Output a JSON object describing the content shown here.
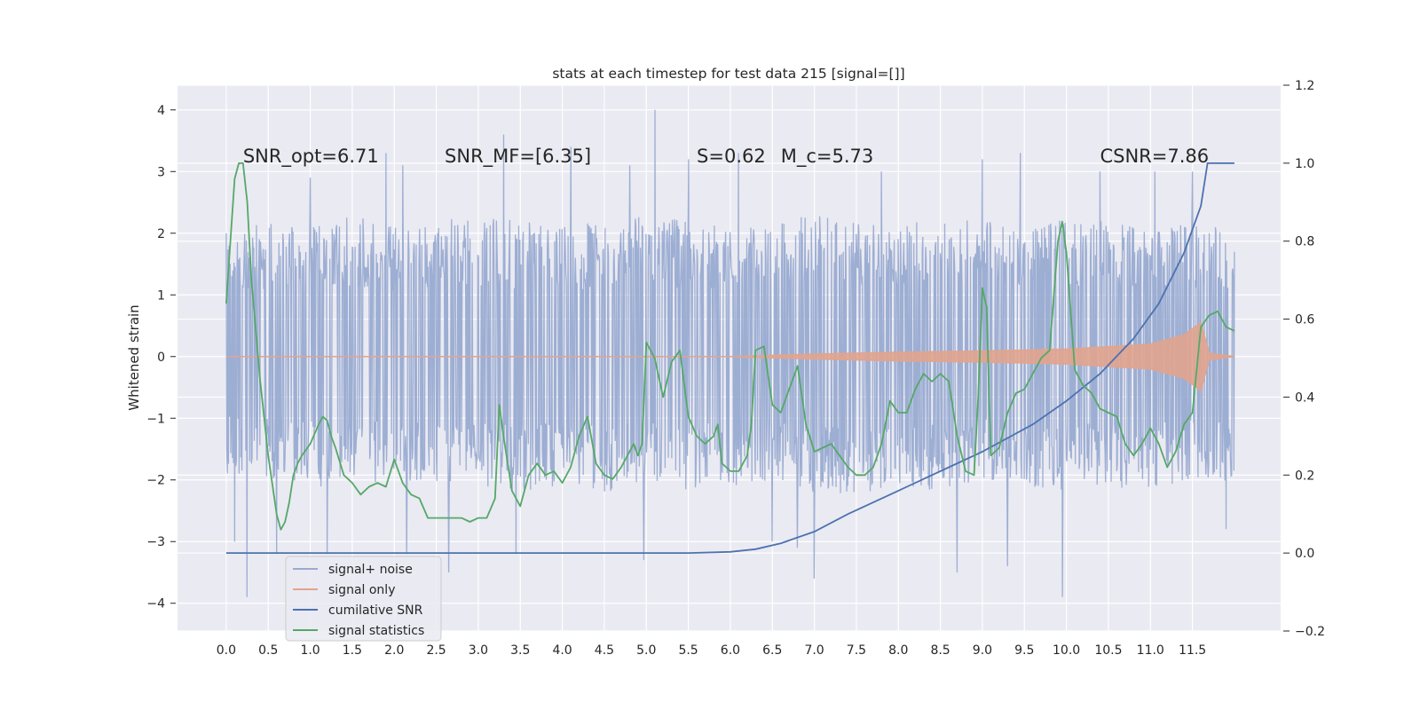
{
  "chart_data": {
    "type": "line",
    "title": "stats at each timestep for test data 215 [signal=[]]",
    "ylabel": "Whitened strain",
    "xlabel": "",
    "xlim": [
      -0.58,
      12.55
    ],
    "ylim": [
      -4.45,
      4.4
    ],
    "y2lim": [
      -0.2,
      1.2
    ],
    "x_ticks": [
      "0.0",
      "0.5",
      "1.0",
      "1.5",
      "2.0",
      "2.5",
      "3.0",
      "3.5",
      "4.0",
      "4.5",
      "5.0",
      "5.5",
      "6.0",
      "6.5",
      "7.0",
      "7.5",
      "8.0",
      "8.5",
      "9.0",
      "9.5",
      "10.0",
      "10.5",
      "11.0",
      "11.5"
    ],
    "y_ticks": [
      "4",
      "3",
      "2",
      "1",
      "0",
      "−1",
      "−2",
      "−3",
      "−4"
    ],
    "y2_ticks": [
      "1.2",
      "1.0",
      "0.8",
      "0.6",
      "0.4",
      "0.2",
      "0.0",
      "−0.2"
    ],
    "grid": true,
    "legend_position": "lower-left",
    "annotations": [
      {
        "text": "SNR_opt=6.71",
        "x": 0.2,
        "y": 3.15
      },
      {
        "text": "SNR_MF=[6.35]",
        "x": 2.6,
        "y": 3.15
      },
      {
        "text": "S=0.62",
        "x": 5.6,
        "y": 3.15
      },
      {
        "text": "M_c=5.73",
        "x": 6.6,
        "y": 3.15
      },
      {
        "text": "CSNR=7.86",
        "x": 10.4,
        "y": 3.15
      }
    ],
    "series": [
      {
        "name": "signal+ noise",
        "axis": "left",
        "color": "#99abd1",
        "x_range": [
          0.0,
          12.0
        ],
        "envelope_low": [
          -1.9,
          -2.0,
          -2.1,
          -2.2,
          -2.0,
          -2.1,
          -2.1,
          -2.2,
          -2.1,
          -2.3,
          -2.0,
          -2.2,
          -2.1,
          -2.0,
          -2.2,
          -2.3,
          -2.1,
          -2.2,
          -2.0,
          -2.1,
          -2.2,
          -2.1,
          -2.2,
          -2.0,
          -2.1
        ],
        "envelope_high": [
          2.0,
          2.2,
          2.1,
          2.3,
          2.1,
          2.2,
          2.3,
          2.2,
          2.1,
          2.2,
          2.3,
          2.2,
          2.1,
          2.2,
          2.3,
          2.2,
          2.1,
          2.3,
          2.2,
          2.1,
          2.3,
          2.2,
          2.1,
          2.2,
          2.2
        ],
        "spikes": [
          [
            0.0,
            2.0
          ],
          [
            0.1,
            -3.0
          ],
          [
            0.25,
            -3.9
          ],
          [
            0.6,
            -3.2
          ],
          [
            1.0,
            2.9
          ],
          [
            1.2,
            -3.2
          ],
          [
            1.9,
            3.3
          ],
          [
            2.1,
            3.1
          ],
          [
            2.15,
            -3.2
          ],
          [
            2.65,
            -3.5
          ],
          [
            3.3,
            3.6
          ],
          [
            3.45,
            -3.2
          ],
          [
            4.1,
            3.4
          ],
          [
            4.8,
            3.1
          ],
          [
            4.97,
            -3.3
          ],
          [
            5.1,
            4.0
          ],
          [
            5.5,
            3.2
          ],
          [
            6.1,
            3.3
          ],
          [
            6.5,
            -3.0
          ],
          [
            6.8,
            -3.1
          ],
          [
            7.0,
            -3.6
          ],
          [
            7.8,
            3.0
          ],
          [
            8.7,
            -3.5
          ],
          [
            9.0,
            3.2
          ],
          [
            9.3,
            -3.4
          ],
          [
            9.45,
            3.3
          ],
          [
            9.95,
            -3.9
          ],
          [
            10.4,
            3.0
          ],
          [
            11.05,
            3.0
          ],
          [
            11.5,
            3.0
          ],
          [
            11.9,
            -2.8
          ]
        ]
      },
      {
        "name": "signal only",
        "axis": "left",
        "color": "#e1a48e",
        "x": [
          0.0,
          6.0,
          7.0,
          8.0,
          9.0,
          10.0,
          11.0,
          11.4,
          11.6,
          11.7,
          12.0
        ],
        "amplitude": [
          0.0,
          0.0,
          0.04,
          0.07,
          0.09,
          0.12,
          0.2,
          0.35,
          0.55,
          0.05,
          0.0
        ]
      },
      {
        "name": "cumilative SNR",
        "axis": "right",
        "color": "#4c72b0",
        "x": [
          0.0,
          5.5,
          6.0,
          6.3,
          6.6,
          7.0,
          7.4,
          8.0,
          8.6,
          9.0,
          9.6,
          10.0,
          10.4,
          10.8,
          11.1,
          11.4,
          11.6,
          11.68,
          12.0
        ],
        "values": [
          0.0,
          0.0,
          0.003,
          0.01,
          0.025,
          0.055,
          0.1,
          0.16,
          0.22,
          0.26,
          0.33,
          0.39,
          0.46,
          0.55,
          0.64,
          0.77,
          0.89,
          1.0,
          1.0
        ]
      },
      {
        "name": "signal statistics",
        "axis": "right",
        "color": "#55a868",
        "x": [
          0.0,
          0.05,
          0.1,
          0.15,
          0.2,
          0.25,
          0.3,
          0.4,
          0.5,
          0.6,
          0.65,
          0.7,
          0.75,
          0.8,
          0.85,
          0.9,
          1.0,
          1.1,
          1.15,
          1.2,
          1.25,
          1.3,
          1.4,
          1.5,
          1.6,
          1.7,
          1.8,
          1.9,
          2.0,
          2.1,
          2.2,
          2.3,
          2.4,
          2.5,
          2.6,
          2.7,
          2.8,
          2.9,
          3.0,
          3.1,
          3.2,
          3.25,
          3.3,
          3.4,
          3.5,
          3.6,
          3.7,
          3.8,
          3.9,
          4.0,
          4.1,
          4.2,
          4.3,
          4.4,
          4.5,
          4.6,
          4.7,
          4.8,
          4.85,
          4.9,
          4.95,
          5.0,
          5.1,
          5.2,
          5.3,
          5.4,
          5.5,
          5.6,
          5.7,
          5.8,
          5.85,
          5.9,
          6.0,
          6.1,
          6.2,
          6.25,
          6.3,
          6.4,
          6.5,
          6.6,
          6.7,
          6.8,
          6.9,
          7.0,
          7.1,
          7.2,
          7.3,
          7.4,
          7.5,
          7.6,
          7.7,
          7.8,
          7.9,
          8.0,
          8.1,
          8.2,
          8.3,
          8.4,
          8.5,
          8.6,
          8.7,
          8.8,
          8.9,
          8.95,
          9.0,
          9.05,
          9.1,
          9.2,
          9.3,
          9.4,
          9.5,
          9.6,
          9.7,
          9.8,
          9.9,
          9.95,
          10.0,
          10.1,
          10.2,
          10.3,
          10.4,
          10.5,
          10.6,
          10.7,
          10.8,
          10.9,
          11.0,
          11.1,
          11.2,
          11.3,
          11.4,
          11.5,
          11.6,
          11.7,
          11.8,
          11.9,
          12.0
        ],
        "values": [
          0.64,
          0.8,
          0.96,
          1.0,
          1.0,
          0.9,
          0.7,
          0.45,
          0.25,
          0.1,
          0.06,
          0.08,
          0.13,
          0.2,
          0.23,
          0.25,
          0.28,
          0.33,
          0.35,
          0.34,
          0.3,
          0.27,
          0.2,
          0.18,
          0.15,
          0.17,
          0.18,
          0.17,
          0.24,
          0.18,
          0.15,
          0.14,
          0.09,
          0.09,
          0.09,
          0.09,
          0.09,
          0.08,
          0.09,
          0.09,
          0.14,
          0.38,
          0.3,
          0.16,
          0.12,
          0.2,
          0.23,
          0.2,
          0.21,
          0.18,
          0.22,
          0.3,
          0.35,
          0.23,
          0.2,
          0.19,
          0.22,
          0.26,
          0.28,
          0.25,
          0.28,
          0.54,
          0.5,
          0.4,
          0.49,
          0.52,
          0.35,
          0.3,
          0.28,
          0.3,
          0.33,
          0.23,
          0.21,
          0.21,
          0.25,
          0.33,
          0.52,
          0.53,
          0.38,
          0.36,
          0.42,
          0.48,
          0.33,
          0.26,
          0.27,
          0.28,
          0.25,
          0.22,
          0.2,
          0.2,
          0.22,
          0.28,
          0.39,
          0.36,
          0.36,
          0.42,
          0.46,
          0.44,
          0.46,
          0.44,
          0.3,
          0.21,
          0.2,
          0.4,
          0.68,
          0.63,
          0.25,
          0.27,
          0.36,
          0.41,
          0.42,
          0.46,
          0.5,
          0.52,
          0.8,
          0.85,
          0.77,
          0.47,
          0.43,
          0.41,
          0.37,
          0.36,
          0.35,
          0.28,
          0.25,
          0.28,
          0.32,
          0.28,
          0.22,
          0.26,
          0.33,
          0.36,
          0.58,
          0.61,
          0.62,
          0.58,
          0.57
        ]
      }
    ]
  }
}
